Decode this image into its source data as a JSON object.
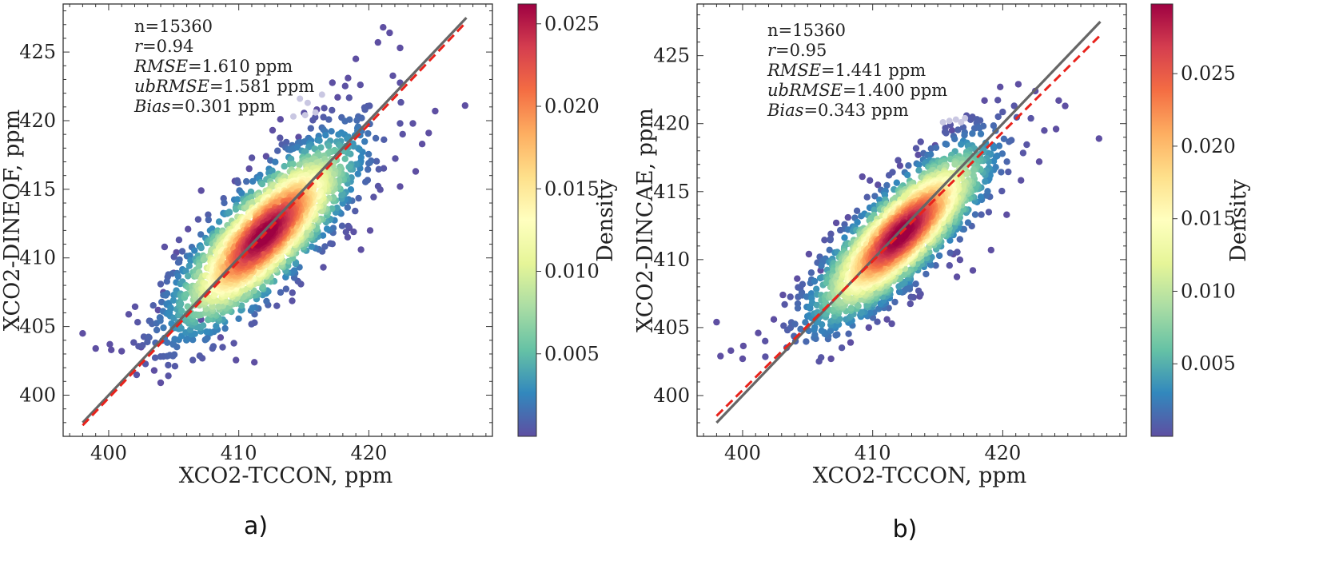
{
  "chart_data": [
    {
      "type": "scatter",
      "panel_tag": "a)",
      "xlabel": "XCO2-TCCON, ppm",
      "ylabel": "XCO2-DINEOF, ppm",
      "xlim": [
        396.5,
        429.5
      ],
      "ylim": [
        397,
        428.5
      ],
      "xticks": [
        400,
        410,
        420
      ],
      "yticks": [
        400,
        405,
        410,
        415,
        420,
        425
      ],
      "grid": false,
      "stats_lines": [
        {
          "name": "n",
          "value": "=15360",
          "italic": false
        },
        {
          "name": "r",
          "value": "=0.94",
          "italic": true
        },
        {
          "name": "RMSE",
          "value": "=1.610 ppm",
          "italic": true
        },
        {
          "name": "ubRMSE",
          "value": "=1.581 ppm",
          "italic": true
        },
        {
          "name": "Bias",
          "value": "=0.301 ppm",
          "italic": true
        }
      ],
      "identity_line": {
        "x": [
          398,
          427.5
        ],
        "y": [
          398,
          427.5
        ],
        "color": "#666666"
      },
      "fit_line": {
        "x": [
          398,
          427.5
        ],
        "y": [
          397.8,
          427.2
        ],
        "color": "#e8231c"
      },
      "density_cloud": {
        "center": [
          412,
          411.7
        ],
        "slope": 1.0,
        "spread_along": 4.6,
        "spread_across": 1.55
      },
      "outliers": [
        [
          398,
          404.5
        ],
        [
          399,
          403.4
        ],
        [
          400.2,
          403.3
        ],
        [
          401,
          403.2
        ],
        [
          402.5,
          403.5
        ],
        [
          403.5,
          401.8
        ],
        [
          404,
          400.9
        ],
        [
          403.8,
          406.2
        ],
        [
          405,
          408.9
        ],
        [
          405.2,
          410.4
        ],
        [
          406.1,
          412.1
        ],
        [
          404.2,
          407.5
        ],
        [
          406.4,
          404.1
        ],
        [
          407.1,
          405.5
        ],
        [
          408.6,
          404.2
        ],
        [
          411.2,
          402.4
        ],
        [
          409.7,
          415.6
        ],
        [
          410.8,
          416.5
        ],
        [
          412.1,
          417.4
        ],
        [
          412.6,
          419.3
        ],
        [
          413.2,
          420.1
        ],
        [
          414.6,
          418.8
        ],
        [
          416,
          420.8
        ],
        [
          417.6,
          421.7
        ],
        [
          418.4,
          423.1
        ],
        [
          419,
          424.5
        ],
        [
          420.7,
          425.7
        ],
        [
          421.1,
          426.8
        ],
        [
          421.6,
          426.4
        ],
        [
          422.4,
          425.3
        ],
        [
          418.5,
          412.2
        ],
        [
          419.4,
          410.6
        ],
        [
          420.1,
          412
        ],
        [
          422.4,
          415.2
        ],
        [
          423.6,
          416.3
        ],
        [
          424.1,
          418.3
        ],
        [
          424.6,
          419.1
        ],
        [
          425.1,
          420.7
        ],
        [
          427.4,
          421.1
        ],
        [
          415.4,
          411.7
        ],
        [
          413.6,
          408.6
        ]
      ],
      "faint_points": [
        [
          414.7,
          421.6
        ],
        [
          415.3,
          421.3
        ],
        [
          415.9,
          420.6
        ],
        [
          415.1,
          420.4
        ],
        [
          416.4,
          421.9
        ],
        [
          414.2,
          420.3
        ]
      ],
      "colorbar": {
        "label": "Density",
        "ticks": [
          0.005,
          0.01,
          0.015,
          0.02,
          0.025
        ],
        "tick_labels": [
          "0.005",
          "0.010",
          "0.015",
          "0.020",
          "0.025"
        ],
        "max": 0.0262
      },
      "colormap": [
        "#5e4fa2",
        "#3288bd",
        "#66c2a5",
        "#abdda4",
        "#e6f598",
        "#ffffbf",
        "#fee08b",
        "#fdae61",
        "#f46d43",
        "#d53e4f",
        "#9e0142"
      ]
    },
    {
      "type": "scatter",
      "panel_tag": "b)",
      "xlabel": "XCO2-TCCON, ppm",
      "ylabel": "XCO2-DINCAE, ppm",
      "xlim": [
        396.5,
        429.5
      ],
      "ylim": [
        397,
        428.8
      ],
      "xticks": [
        400,
        410,
        420
      ],
      "yticks": [
        400,
        405,
        410,
        415,
        420,
        425
      ],
      "grid": false,
      "stats_lines": [
        {
          "name": "n",
          "value": "=15360",
          "italic": false
        },
        {
          "name": "r",
          "value": "=0.95",
          "italic": true
        },
        {
          "name": "RMSE",
          "value": "=1.441 ppm",
          "italic": true
        },
        {
          "name": "ubRMSE",
          "value": "=1.400 ppm",
          "italic": true
        },
        {
          "name": "Bias",
          "value": "=0.343 ppm",
          "italic": true
        }
      ],
      "identity_line": {
        "x": [
          398,
          427.5
        ],
        "y": [
          398,
          427.5
        ],
        "color": "#666666"
      },
      "fit_line": {
        "x": [
          398,
          427.5
        ],
        "y": [
          398.5,
          426.5
        ],
        "color": "#e8231c"
      },
      "density_cloud": {
        "center": [
          412.2,
          411.9
        ],
        "slope": 0.97,
        "spread_along": 4.4,
        "spread_across": 1.4
      },
      "outliers": [
        [
          398,
          405.4
        ],
        [
          398.3,
          402.9
        ],
        [
          399.1,
          403.3
        ],
        [
          400,
          402.7
        ],
        [
          401.2,
          404.6
        ],
        [
          402.4,
          405.6
        ],
        [
          403.1,
          407.4
        ],
        [
          404.2,
          408.6
        ],
        [
          405.1,
          410.4
        ],
        [
          406,
          409.2
        ],
        [
          407.2,
          412.7
        ],
        [
          408.1,
          413.1
        ],
        [
          409.2,
          416.1
        ],
        [
          410.4,
          415.5
        ],
        [
          411,
          414.3
        ],
        [
          412.1,
          416.9
        ],
        [
          413.5,
          417.7
        ],
        [
          414.8,
          418.4
        ],
        [
          416.1,
          419.5
        ],
        [
          417.6,
          420.4
        ],
        [
          418.6,
          421.7
        ],
        [
          419.8,
          422.7
        ],
        [
          421.2,
          422.9
        ],
        [
          422.5,
          422.4
        ],
        [
          424.3,
          421.7
        ],
        [
          424.8,
          421.3
        ],
        [
          427.4,
          418.9
        ],
        [
          424.1,
          419.6
        ],
        [
          422.8,
          417.2
        ],
        [
          420.3,
          413.3
        ],
        [
          419.1,
          410.7
        ],
        [
          417.7,
          409.2
        ],
        [
          416.2,
          410.4
        ],
        [
          413.6,
          407.3
        ],
        [
          411.1,
          405.6
        ],
        [
          409.7,
          405
        ],
        [
          406.8,
          402.7
        ],
        [
          408.3,
          403.9
        ]
      ],
      "faint_points": [
        [
          415.4,
          420.1
        ],
        [
          415.9,
          420.2
        ],
        [
          416.4,
          420.3
        ],
        [
          416.8,
          420.1
        ],
        [
          417.1,
          420.4
        ]
      ],
      "colorbar": {
        "label": "Density",
        "ticks": [
          0.005,
          0.01,
          0.015,
          0.02,
          0.025
        ],
        "tick_labels": [
          "0.005",
          "0.010",
          "0.015",
          "0.020",
          "0.025"
        ],
        "max": 0.0298
      },
      "colormap": [
        "#5e4fa2",
        "#3288bd",
        "#66c2a5",
        "#abdda4",
        "#e6f598",
        "#ffffbf",
        "#fee08b",
        "#fdae61",
        "#f46d43",
        "#d53e4f",
        "#9e0142"
      ]
    }
  ]
}
